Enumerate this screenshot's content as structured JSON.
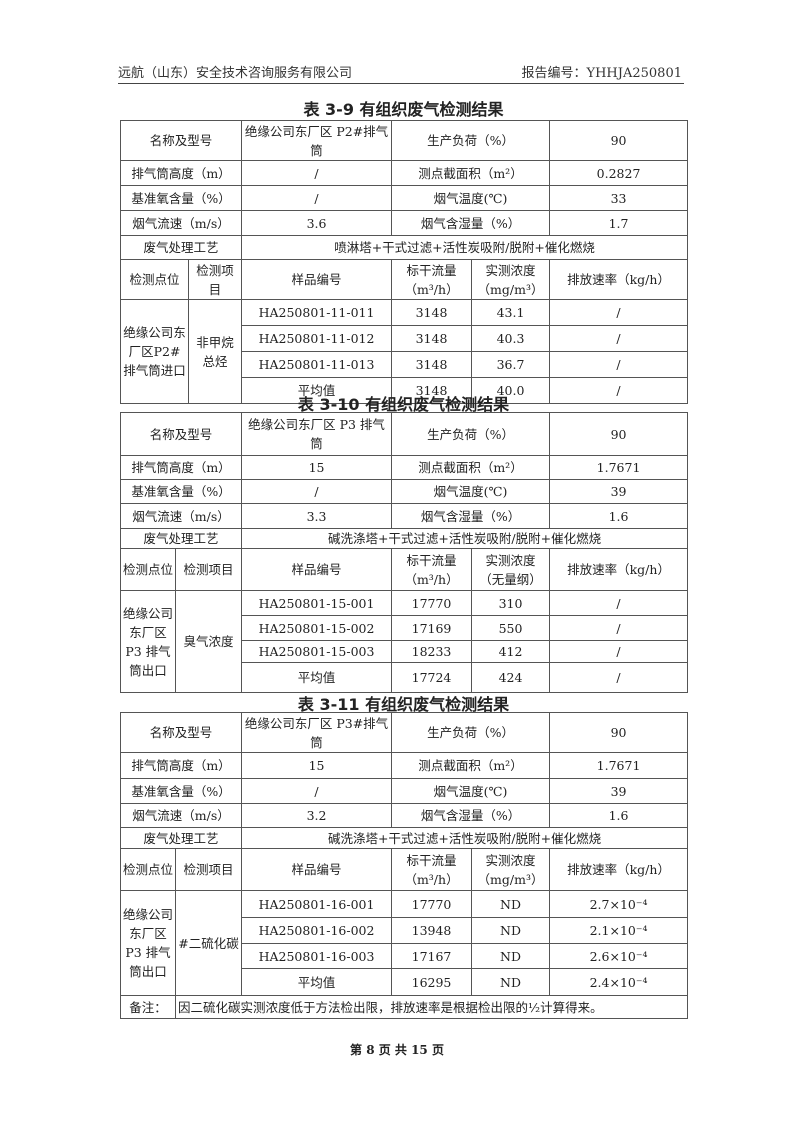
{
  "header": {
    "company": "远航（山东）安全技术咨询服务有限公司",
    "report_no": "报告编号：YHHJA250801"
  },
  "footer": {
    "page": "第 8 页 共 15 页"
  },
  "tables": [
    {
      "title": "表 3-9 有组织废气检测结果",
      "info": [
        [
          "名称及型号",
          "绝缘公司东厂区 P2#排气筒",
          "生产负荷（%）",
          "90"
        ],
        [
          "排气筒高度（m）",
          "/",
          "测点截面积（m²）",
          "0.2827"
        ],
        [
          "基准氧含量（%）",
          "/",
          "烟气温度(℃)",
          "33"
        ],
        [
          "烟气流速（m/s）",
          "3.6",
          "烟气含湿量（%）",
          "1.7"
        ]
      ],
      "process": [
        "废气处理工艺",
        "喷淋塔+干式过滤+活性炭吸附/脱附+催化燃烧"
      ],
      "headers": [
        "检测点位",
        "检测项目",
        "样品编号",
        "标干流量（m³/h）",
        "实测浓度（mg/m³）",
        "排放速率（kg/h）"
      ],
      "location": "绝缘公司东厂区P2#排气筒进口",
      "item": "非甲烷总烃",
      "rows": [
        [
          "HA250801-11-011",
          "3148",
          "43.1",
          "/"
        ],
        [
          "HA250801-11-012",
          "3148",
          "40.3",
          "/"
        ],
        [
          "HA250801-11-013",
          "3148",
          "36.7",
          "/"
        ],
        [
          "平均值",
          "3148",
          "40.0",
          "/"
        ]
      ]
    },
    {
      "title": "表 3-10 有组织废气检测结果",
      "info": [
        [
          "名称及型号",
          "绝缘公司东厂区 P3 排气筒",
          "生产负荷（%）",
          "90"
        ],
        [
          "排气筒高度（m）",
          "15",
          "测点截面积（m²）",
          "1.7671"
        ],
        [
          "基准氧含量（%）",
          "/",
          "烟气温度(℃)",
          "39"
        ],
        [
          "烟气流速（m/s）",
          "3.3",
          "烟气含湿量（%）",
          "1.6"
        ]
      ],
      "process": [
        "废气处理工艺",
        "碱洗涤塔+干式过滤+活性炭吸附/脱附+催化燃烧"
      ],
      "headers": [
        "检测点位",
        "检测项目",
        "样品编号",
        "标干流量（m³/h）",
        "实测浓度（无量纲）",
        "排放速率（kg/h）"
      ],
      "location": "绝缘公司东厂区 P3 排气筒出口",
      "item": "臭气浓度",
      "rows": [
        [
          "HA250801-15-001",
          "17770",
          "310",
          "/"
        ],
        [
          "HA250801-15-002",
          "17169",
          "550",
          "/"
        ],
        [
          "HA250801-15-003",
          "18233",
          "412",
          "/"
        ],
        [
          "平均值",
          "17724",
          "424",
          "/"
        ]
      ]
    },
    {
      "title": "表 3-11 有组织废气检测结果",
      "info": [
        [
          "名称及型号",
          "绝缘公司东厂区 P3#排气筒",
          "生产负荷（%）",
          "90"
        ],
        [
          "排气筒高度（m）",
          "15",
          "测点截面积（m²）",
          "1.7671"
        ],
        [
          "基准氧含量（%）",
          "/",
          "烟气温度(℃)",
          "39"
        ],
        [
          "烟气流速（m/s）",
          "3.2",
          "烟气含湿量（%）",
          "1.6"
        ]
      ],
      "process": [
        "废气处理工艺",
        "碱洗涤塔+干式过滤+活性炭吸附/脱附+催化燃烧"
      ],
      "headers": [
        "检测点位",
        "检测项目",
        "样品编号",
        "标干流量（m³/h）",
        "实测浓度（mg/m³）",
        "排放速率（kg/h）"
      ],
      "location": "绝缘公司东厂区 P3 排气筒出口",
      "item": "#二硫化碳",
      "rows": [
        [
          "HA250801-16-001",
          "17770",
          "ND",
          "2.7×10⁻⁴"
        ],
        [
          "HA250801-16-002",
          "13948",
          "ND",
          "2.1×10⁻⁴"
        ],
        [
          "HA250801-16-003",
          "17167",
          "ND",
          "2.6×10⁻⁴"
        ],
        [
          "平均值",
          "16295",
          "ND",
          "2.4×10⁻⁴"
        ]
      ],
      "note": [
        "备注：",
        "因二硫化碳实测浓度低于方法检出限，排放速率是根据检出限的½计算得来。"
      ]
    }
  ]
}
